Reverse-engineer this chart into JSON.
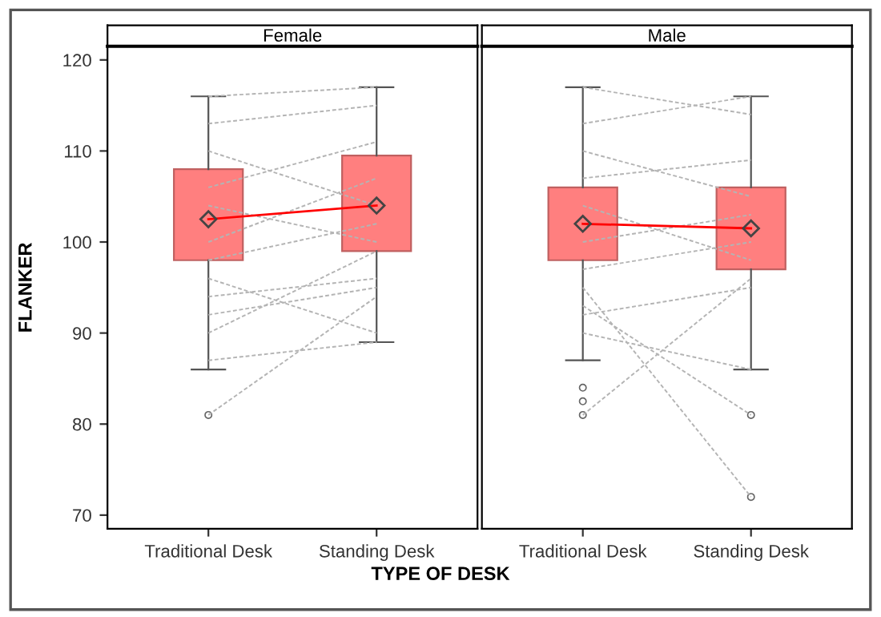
{
  "chart_data": [
    {
      "type": "box",
      "title": "Female",
      "xlabel": "TYPE OF DESK",
      "ylabel": "FLANKER",
      "categories": [
        "Traditional Desk",
        "Standing Desk"
      ],
      "colors": [
        "#ff7f7f",
        "#ff7f7f"
      ],
      "boxes": [
        {
          "low": 86,
          "q1": 98,
          "q3": 108,
          "high": 116,
          "mean": 102.5,
          "outliers": [
            81
          ]
        },
        {
          "low": 89,
          "q1": 99,
          "q3": 109.5,
          "high": 117,
          "mean": 104
        }
      ],
      "ylim": [
        68.5,
        121.5
      ],
      "yticks": [
        70,
        80,
        90,
        100,
        110,
        120
      ],
      "grid": false,
      "legend": false,
      "series": [
        {
          "type": "line",
          "color": "#ff0000",
          "line_style": "solid",
          "values": [
            102.5,
            104
          ]
        },
        {
          "type": "line",
          "color": "#b4b4b4",
          "marker": "none",
          "line_style": "dashed",
          "values": [
            81,
            94
          ]
        },
        {
          "type": "line",
          "color": "#b4b4b4",
          "marker": "none",
          "line_style": "dashed",
          "values": [
            87,
            89
          ]
        },
        {
          "type": "line",
          "color": "#b4b4b4",
          "marker": "none",
          "line_style": "dashed",
          "values": [
            92,
            95
          ]
        },
        {
          "type": "line",
          "color": "#b4b4b4",
          "marker": "none",
          "line_style": "dashed",
          "values": [
            94,
            96
          ]
        },
        {
          "type": "line",
          "color": "#b4b4b4",
          "marker": "none",
          "line_style": "dashed",
          "values": [
            96,
            90
          ]
        },
        {
          "type": "line",
          "color": "#b4b4b4",
          "marker": "none",
          "line_style": "dashed",
          "values": [
            116,
            117
          ]
        },
        {
          "type": "line",
          "color": "#b4b4b4",
          "marker": "none",
          "line_style": "dashed",
          "values": [
            113,
            115
          ]
        },
        {
          "type": "line",
          "color": "#b4b4b4",
          "marker": "none",
          "line_style": "dashed",
          "values": [
            110,
            104
          ]
        },
        {
          "type": "line",
          "color": "#b4b4b4",
          "marker": "none",
          "line_style": "dashed",
          "values": [
            106,
            111
          ]
        },
        {
          "type": "line",
          "color": "#b4b4b4",
          "marker": "none",
          "line_style": "dashed",
          "values": [
            104,
            100
          ]
        },
        {
          "type": "line",
          "color": "#b4b4b4",
          "marker": "none",
          "line_style": "dashed",
          "values": [
            100,
            107
          ]
        },
        {
          "type": "line",
          "color": "#b4b4b4",
          "marker": "none",
          "line_style": "dashed",
          "values": [
            98,
            102
          ]
        },
        {
          "type": "line",
          "color": "#b4b4b4",
          "marker": "none",
          "line_style": "dashed",
          "values": [
            90,
            99
          ]
        }
      ]
    },
    {
      "type": "box",
      "title": "Male",
      "categories": [
        "Traditional Desk",
        "Standing Desk"
      ],
      "colors": [
        "#ff7f7f",
        "#ff7f7f"
      ],
      "tick_labels": "x",
      "boxes": [
        {
          "low": 87,
          "q1": 98,
          "q3": 106,
          "high": 117,
          "mean": 102,
          "outliers": [
            84,
            82.5,
            81
          ]
        },
        {
          "low": 86,
          "q1": 97,
          "q3": 106,
          "high": 116,
          "mean": 101.5,
          "outliers": [
            81,
            72
          ]
        }
      ],
      "ylim": [
        68.5,
        121.5
      ],
      "yticks": [
        70,
        80,
        90,
        100,
        110,
        120
      ],
      "grid": false,
      "legend": false,
      "series": [
        {
          "type": "line",
          "color": "#ff0000",
          "line_style": "solid",
          "values": [
            102,
            101.5
          ]
        },
        {
          "type": "line",
          "color": "#b4b4b4",
          "marker": "none",
          "line_style": "dashed",
          "values": [
            81,
            96
          ]
        },
        {
          "type": "line",
          "color": "#b4b4b4",
          "marker": "none",
          "line_style": "dashed",
          "values": [
            95,
            72
          ]
        },
        {
          "type": "line",
          "color": "#b4b4b4",
          "marker": "none",
          "line_style": "dashed",
          "values": [
            93,
            81
          ]
        },
        {
          "type": "line",
          "color": "#b4b4b4",
          "marker": "none",
          "line_style": "dashed",
          "values": [
            90,
            86
          ]
        },
        {
          "type": "line",
          "color": "#b4b4b4",
          "marker": "none",
          "line_style": "dashed",
          "values": [
            117,
            114
          ]
        },
        {
          "type": "line",
          "color": "#b4b4b4",
          "marker": "none",
          "line_style": "dashed",
          "values": [
            113,
            116
          ]
        },
        {
          "type": "line",
          "color": "#b4b4b4",
          "marker": "none",
          "line_style": "dashed",
          "values": [
            110,
            105
          ]
        },
        {
          "type": "line",
          "color": "#b4b4b4",
          "marker": "none",
          "line_style": "dashed",
          "values": [
            107,
            109
          ]
        },
        {
          "type": "line",
          "color": "#b4b4b4",
          "marker": "none",
          "line_style": "dashed",
          "values": [
            104,
            98
          ]
        },
        {
          "type": "line",
          "color": "#b4b4b4",
          "marker": "none",
          "line_style": "dashed",
          "values": [
            100,
            103
          ]
        },
        {
          "type": "line",
          "color": "#b4b4b4",
          "marker": "none",
          "line_style": "dashed",
          "values": [
            97,
            100
          ]
        },
        {
          "type": "line",
          "color": "#b4b4b4",
          "marker": "none",
          "line_style": "dashed",
          "values": [
            92,
            95
          ]
        }
      ]
    }
  ]
}
